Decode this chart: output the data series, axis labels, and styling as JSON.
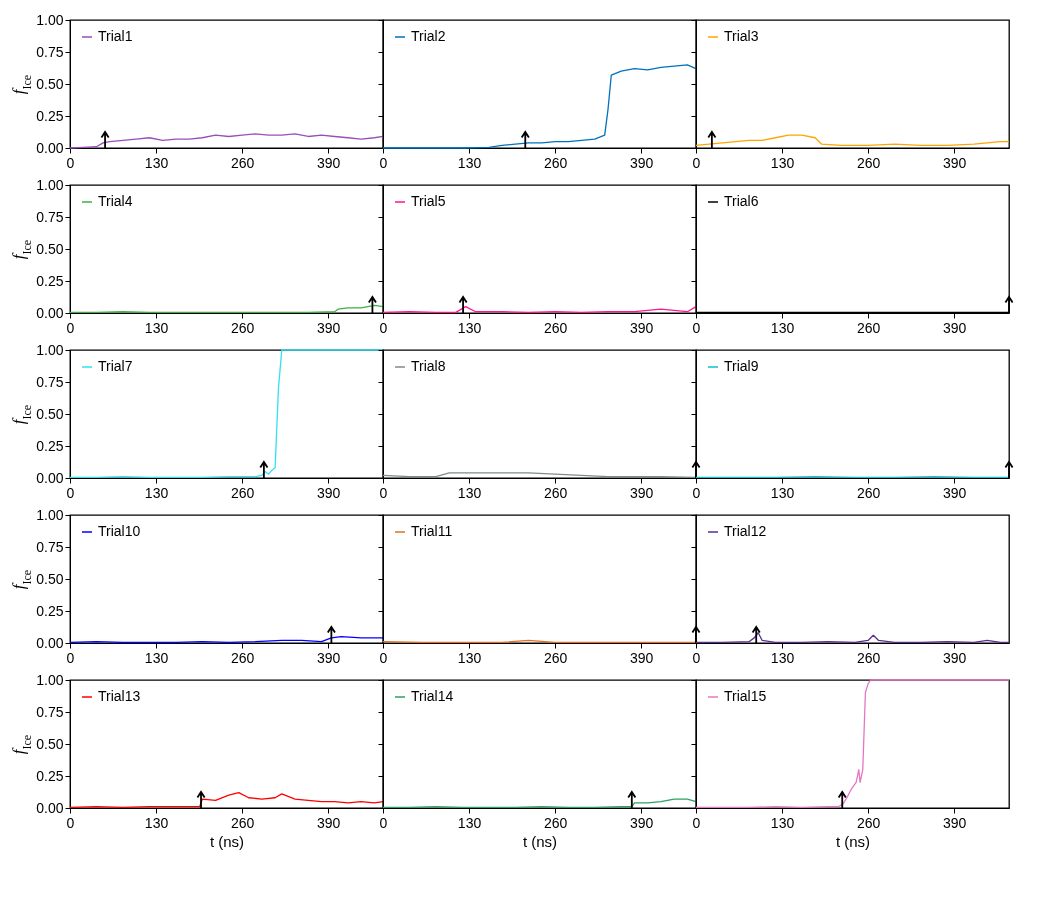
{
  "chart_data": [
    {
      "type": "line",
      "ylabel": "f$_{Ice}$",
      "xlim": [
        0,
        473
      ],
      "xticks": [
        0,
        130,
        260,
        390
      ],
      "ylim": [
        0,
        1
      ],
      "yticks": [
        {
          "value": 0,
          "label": "0.00"
        },
        {
          "value": 0.25,
          "label": "0.25"
        },
        {
          "value": 0.5,
          "label": "0.50"
        },
        {
          "value": 0.75,
          "label": "0.75"
        },
        {
          "value": 1,
          "label": "1.00"
        }
      ],
      "legend": "top left",
      "ref_lines": [
        {
          "axis": "x",
          "value": 53
        }
      ],
      "series": [
        {
          "name": "Trial1",
          "color": "#9a4dbb",
          "x": [
            0,
            20,
            40,
            50,
            60,
            80,
            100,
            120,
            140,
            160,
            180,
            200,
            220,
            240,
            260,
            280,
            300,
            320,
            340,
            360,
            380,
            400,
            420,
            440,
            460,
            473
          ],
          "values": [
            0,
            0.005,
            0.01,
            0.04,
            0.05,
            0.06,
            0.07,
            0.08,
            0.06,
            0.07,
            0.07,
            0.08,
            0.1,
            0.09,
            0.1,
            0.11,
            0.1,
            0.1,
            0.11,
            0.09,
            0.1,
            0.09,
            0.08,
            0.07,
            0.08,
            0.09
          ]
        }
      ]
    },
    {
      "type": "line",
      "xlim": [
        0,
        473
      ],
      "xticks": [
        0,
        130,
        260,
        390
      ],
      "ylim": [
        0,
        1
      ],
      "yticks": [
        0,
        0.25,
        0.5,
        0.75,
        1
      ],
      "tick_labels": "x",
      "legend": "top left",
      "ref_lines": [
        {
          "axis": "x",
          "value": 215
        }
      ],
      "series": [
        {
          "name": "Trial2",
          "color": "#0072bd",
          "x": [
            0,
            40,
            80,
            120,
            160,
            180,
            200,
            220,
            240,
            260,
            280,
            300,
            320,
            335,
            340,
            345,
            360,
            380,
            400,
            420,
            440,
            460,
            473
          ],
          "values": [
            0,
            0,
            0,
            0,
            0.005,
            0.02,
            0.03,
            0.04,
            0.04,
            0.05,
            0.05,
            0.06,
            0.07,
            0.1,
            0.3,
            0.57,
            0.6,
            0.62,
            0.61,
            0.63,
            0.64,
            0.65,
            0.62
          ]
        }
      ]
    },
    {
      "type": "line",
      "xlim": [
        0,
        473
      ],
      "xticks": [
        0,
        130,
        260,
        390
      ],
      "ylim": [
        0,
        1
      ],
      "yticks": [
        0,
        0.25,
        0.5,
        0.75,
        1
      ],
      "tick_labels": "x",
      "legend": "top left",
      "ref_lines": [
        {
          "axis": "x",
          "value": 24
        }
      ],
      "series": [
        {
          "name": "Trial3",
          "color": "#ffa500",
          "x": [
            0,
            20,
            40,
            60,
            80,
            100,
            120,
            140,
            160,
            180,
            190,
            220,
            260,
            300,
            340,
            380,
            420,
            440,
            460,
            473
          ],
          "values": [
            0.02,
            0.03,
            0.04,
            0.05,
            0.06,
            0.06,
            0.08,
            0.1,
            0.1,
            0.08,
            0.03,
            0.02,
            0.02,
            0.03,
            0.02,
            0.02,
            0.03,
            0.04,
            0.05,
            0.05
          ]
        }
      ]
    },
    {
      "type": "line",
      "ylabel": "f$_{Ice}$",
      "xlim": [
        0,
        473
      ],
      "xticks": [
        0,
        130,
        260,
        390
      ],
      "ylim": [
        0,
        1
      ],
      "yticks": [
        {
          "value": 0,
          "label": "0.00"
        },
        {
          "value": 0.25,
          "label": "0.25"
        },
        {
          "value": 0.5,
          "label": "0.50"
        },
        {
          "value": 0.75,
          "label": "0.75"
        },
        {
          "value": 1,
          "label": "1.00"
        }
      ],
      "legend": "top left",
      "ref_lines": [
        {
          "axis": "x",
          "value": 457
        }
      ],
      "series": [
        {
          "name": "Trial4",
          "color": "#3cb043",
          "x": [
            0,
            40,
            80,
            120,
            160,
            200,
            240,
            280,
            320,
            360,
            400,
            405,
            420,
            440,
            460,
            473
          ],
          "values": [
            0.005,
            0.005,
            0.01,
            0.005,
            0.005,
            0.005,
            0.005,
            0.005,
            0.005,
            0.005,
            0.01,
            0.03,
            0.04,
            0.04,
            0.06,
            0.05
          ]
        }
      ]
    },
    {
      "type": "line",
      "xlim": [
        0,
        473
      ],
      "xticks": [
        0,
        130,
        260,
        390
      ],
      "ylim": [
        0,
        1
      ],
      "yticks": [
        0,
        0.25,
        0.5,
        0.75,
        1
      ],
      "tick_labels": "x",
      "legend": "top left",
      "ref_lines": [
        {
          "axis": "x",
          "value": 121
        }
      ],
      "series": [
        {
          "name": "Trial5",
          "color": "#ff1493",
          "x": [
            0,
            40,
            80,
            110,
            125,
            140,
            180,
            220,
            260,
            300,
            340,
            380,
            400,
            420,
            440,
            460,
            473
          ],
          "values": [
            0.005,
            0.01,
            0.005,
            0.005,
            0.05,
            0.01,
            0.01,
            0.005,
            0.01,
            0.005,
            0.01,
            0.01,
            0.02,
            0.03,
            0.02,
            0.01,
            0.05
          ]
        }
      ]
    },
    {
      "type": "line",
      "xlim": [
        0,
        473
      ],
      "xticks": [
        0,
        130,
        260,
        390
      ],
      "ylim": [
        0,
        1
      ],
      "yticks": [
        0,
        0.25,
        0.5,
        0.75,
        1
      ],
      "tick_labels": "x",
      "legend": "top left",
      "ref_lines": [
        {
          "axis": "x",
          "value": 473
        }
      ],
      "series": [
        {
          "name": "Trial6",
          "color": "#000000",
          "x": [
            0,
            60,
            120,
            180,
            240,
            300,
            360,
            420,
            473
          ],
          "values": [
            0.005,
            0.005,
            0.005,
            0.005,
            0.005,
            0.005,
            0.005,
            0.005,
            0.005
          ]
        }
      ]
    },
    {
      "type": "line",
      "ylabel": "f$_{Ice}$",
      "xlim": [
        0,
        473
      ],
      "xticks": [
        0,
        130,
        260,
        390
      ],
      "ylim": [
        0,
        1
      ],
      "yticks": [
        {
          "value": 0,
          "label": "0.00"
        },
        {
          "value": 0.25,
          "label": "0.25"
        },
        {
          "value": 0.5,
          "label": "0.50"
        },
        {
          "value": 0.75,
          "label": "0.75"
        },
        {
          "value": 1,
          "label": "1.00"
        }
      ],
      "legend": "top left",
      "ref_lines": [
        {
          "axis": "x",
          "value": 293
        }
      ],
      "series": [
        {
          "name": "Trial7",
          "color": "#33e0f0",
          "x": [
            0,
            40,
            80,
            120,
            160,
            200,
            240,
            280,
            290,
            295,
            300,
            305,
            310,
            315,
            320,
            360,
            400,
            440,
            473
          ],
          "values": [
            0.005,
            0.005,
            0.01,
            0.005,
            0.005,
            0.005,
            0.01,
            0.01,
            0.02,
            0.05,
            0.03,
            0.06,
            0.08,
            0.7,
            1,
            1,
            1,
            1,
            1
          ]
        }
      ]
    },
    {
      "type": "line",
      "xlim": [
        0,
        473
      ],
      "xticks": [
        0,
        130,
        260,
        390
      ],
      "ylim": [
        0,
        1
      ],
      "yticks": [
        0,
        0.25,
        0.5,
        0.75,
        1
      ],
      "tick_labels": "x",
      "legend": "top left",
      "ref_lines": [
        {
          "axis": "x",
          "value": 473
        }
      ],
      "series": [
        {
          "name": "Trial8",
          "color": "#7f8c8d",
          "x": [
            0,
            40,
            80,
            100,
            140,
            180,
            220,
            260,
            300,
            340,
            380,
            420,
            473
          ],
          "values": [
            0.02,
            0.01,
            0.01,
            0.04,
            0.04,
            0.04,
            0.04,
            0.03,
            0.02,
            0.01,
            0.01,
            0.01,
            0.005
          ]
        }
      ]
    },
    {
      "type": "line",
      "xlim": [
        0,
        473
      ],
      "xticks": [
        0,
        130,
        260,
        390
      ],
      "ylim": [
        0,
        1
      ],
      "yticks": [
        0,
        0.25,
        0.5,
        0.75,
        1
      ],
      "tick_labels": "x",
      "legend": "top left",
      "ref_lines": [
        {
          "axis": "x",
          "value": 473
        }
      ],
      "series": [
        {
          "name": "Trial9",
          "color": "#17becf",
          "x": [
            0,
            60,
            120,
            180,
            240,
            300,
            360,
            420,
            473
          ],
          "values": [
            0.005,
            0.005,
            0.005,
            0.01,
            0.005,
            0.005,
            0.01,
            0.005,
            0.005
          ]
        }
      ]
    },
    {
      "type": "line",
      "ylabel": "f$_{Ice}$",
      "xlim": [
        0,
        473
      ],
      "xticks": [
        0,
        130,
        260,
        390
      ],
      "ylim": [
        0,
        1
      ],
      "yticks": [
        {
          "value": 0,
          "label": "0.00"
        },
        {
          "value": 0.25,
          "label": "0.25"
        },
        {
          "value": 0.5,
          "label": "0.50"
        },
        {
          "value": 0.75,
          "label": "0.75"
        },
        {
          "value": 1,
          "label": "1.00"
        }
      ],
      "legend": "top left",
      "ref_lines": [
        {
          "axis": "x",
          "value": 395
        }
      ],
      "series": [
        {
          "name": "Trial10",
          "color": "#0000ff",
          "x": [
            0,
            40,
            80,
            120,
            160,
            200,
            240,
            280,
            320,
            350,
            380,
            395,
            410,
            440,
            473
          ],
          "values": [
            0.005,
            0.01,
            0.005,
            0.005,
            0.005,
            0.01,
            0.005,
            0.01,
            0.02,
            0.02,
            0.01,
            0.04,
            0.05,
            0.04,
            0.04
          ]
        }
      ]
    },
    {
      "type": "line",
      "xlim": [
        0,
        473
      ],
      "xticks": [
        0,
        130,
        260,
        390
      ],
      "ylim": [
        0,
        1
      ],
      "yticks": [
        0,
        0.25,
        0.5,
        0.75,
        1
      ],
      "tick_labels": "x",
      "legend": "top left",
      "ref_lines": [
        {
          "axis": "x",
          "value": 473
        }
      ],
      "series": [
        {
          "name": "Trial11",
          "color": "#e07020",
          "x": [
            0,
            60,
            120,
            180,
            220,
            260,
            300,
            360,
            420,
            473
          ],
          "values": [
            0.01,
            0.005,
            0.005,
            0.005,
            0.02,
            0.005,
            0.005,
            0.005,
            0.005,
            0.005
          ]
        }
      ]
    },
    {
      "type": "line",
      "xlim": [
        0,
        473
      ],
      "xticks": [
        0,
        130,
        260,
        390
      ],
      "ylim": [
        0,
        1
      ],
      "yticks": [
        0,
        0.25,
        0.5,
        0.75,
        1
      ],
      "tick_labels": "x",
      "legend": "top left",
      "ref_lines": [
        {
          "axis": "x",
          "value": 91
        }
      ],
      "series": [
        {
          "name": "Trial12",
          "color": "#5a2d91",
          "x": [
            0,
            40,
            80,
            88,
            94,
            100,
            120,
            160,
            200,
            240,
            260,
            268,
            276,
            300,
            340,
            380,
            420,
            440,
            460,
            473
          ],
          "values": [
            0.005,
            0.005,
            0.01,
            0.04,
            0.08,
            0.02,
            0.005,
            0.005,
            0.01,
            0.005,
            0.02,
            0.06,
            0.02,
            0.005,
            0.005,
            0.01,
            0.005,
            0.02,
            0.005,
            0.005
          ]
        }
      ]
    },
    {
      "type": "line",
      "ylabel": "f$_{Ice}$",
      "xlabel": "t (ns)",
      "xlim": [
        0,
        473
      ],
      "xticks": [
        0,
        130,
        260,
        390
      ],
      "ylim": [
        0,
        1
      ],
      "yticks": [
        {
          "value": 0,
          "label": "0.00"
        },
        {
          "value": 0.25,
          "label": "0.25"
        },
        {
          "value": 0.5,
          "label": "0.50"
        },
        {
          "value": 0.75,
          "label": "0.75"
        },
        {
          "value": 1,
          "label": "1.00"
        }
      ],
      "legend": "top left",
      "ref_lines": [
        {
          "axis": "x",
          "value": 198
        }
      ],
      "series": [
        {
          "name": "Trial13",
          "color": "#ff0000",
          "x": [
            0,
            40,
            80,
            120,
            160,
            196,
            200,
            220,
            240,
            255,
            270,
            290,
            310,
            320,
            340,
            360,
            380,
            400,
            420,
            440,
            460,
            473
          ],
          "values": [
            0.005,
            0.01,
            0.005,
            0.01,
            0.01,
            0.01,
            0.07,
            0.06,
            0.1,
            0.12,
            0.08,
            0.07,
            0.08,
            0.11,
            0.07,
            0.06,
            0.05,
            0.05,
            0.04,
            0.05,
            0.04,
            0.05
          ]
        }
      ]
    },
    {
      "type": "line",
      "xlabel": "t (ns)",
      "xlim": [
        0,
        473
      ],
      "xticks": [
        0,
        130,
        260,
        390
      ],
      "ylim": [
        0,
        1
      ],
      "yticks": [
        0,
        0.25,
        0.5,
        0.75,
        1
      ],
      "tick_labels": "x",
      "legend": "top left",
      "ref_lines": [
        {
          "axis": "x",
          "value": 376
        }
      ],
      "series": [
        {
          "name": "Trial14",
          "color": "#2ca25f",
          "x": [
            0,
            40,
            80,
            120,
            160,
            200,
            240,
            280,
            320,
            360,
            376,
            380,
            400,
            420,
            440,
            460,
            473
          ],
          "values": [
            0.005,
            0.005,
            0.01,
            0.005,
            0.005,
            0.005,
            0.01,
            0.005,
            0.005,
            0.01,
            0.01,
            0.04,
            0.04,
            0.05,
            0.07,
            0.07,
            0.05
          ]
        }
      ]
    },
    {
      "type": "line",
      "xlabel": "t (ns)",
      "xlim": [
        0,
        473
      ],
      "xticks": [
        0,
        130,
        260,
        390
      ],
      "ylim": [
        0,
        1
      ],
      "yticks": [
        0,
        0.25,
        0.5,
        0.75,
        1
      ],
      "tick_labels": "x",
      "legend": "top left",
      "ref_lines": [
        {
          "axis": "x",
          "value": 221
        }
      ],
      "series": [
        {
          "name": "Trial15",
          "color": "#e377c2",
          "x": [
            0,
            40,
            80,
            120,
            160,
            200,
            215,
            222,
            228,
            235,
            242,
            246,
            248,
            252,
            256,
            260,
            264,
            300,
            360,
            420,
            473
          ],
          "values": [
            0.005,
            0.005,
            0.005,
            0.01,
            0.005,
            0.01,
            0.01,
            0.03,
            0.08,
            0.15,
            0.2,
            0.3,
            0.2,
            0.3,
            0.9,
            0.97,
            1,
            1,
            1,
            1,
            1
          ]
        }
      ]
    }
  ]
}
